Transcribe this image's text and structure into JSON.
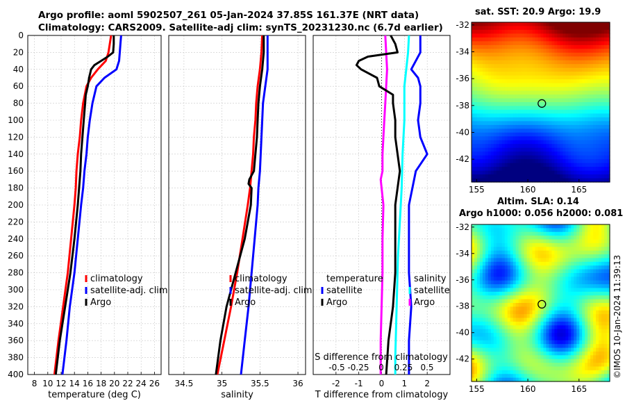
{
  "title_line1": "Argo profile: aoml 5902507_261 05-Jan-2024 37.85S 161.37E (NRT data)",
  "title_line2": "Climatology: CARS2009. Satellite-adj clim: synTS_20231230.nc (6.7d earlier)",
  "map1_title": "sat. SST: 20.9 Argo: 19.9",
  "map2_title_line1": "Altim. SLA: 0.14",
  "map2_title_line2": "Argo h1000: 0.056 h2000: 0.081",
  "credit": "©IMOS 10-Jan-2024 11:39:13",
  "colors": {
    "climatology": "#ff0000",
    "satellite": "#0000ff",
    "argo": "#000000",
    "sat_salinity": "#00ffff",
    "argo_salinity": "#ff00ff"
  },
  "chart_data": [
    {
      "type": "line",
      "name": "temperature",
      "xlabel": "temperature (deg C)",
      "ylabel": "",
      "xlim": [
        7,
        27
      ],
      "ylim": [
        400,
        0
      ],
      "xticks": [
        "8",
        "10",
        "12",
        "14",
        "16",
        "18",
        "20",
        "22",
        "24",
        "26"
      ],
      "yticks": [
        "0",
        "20",
        "40",
        "60",
        "80",
        "100",
        "120",
        "140",
        "160",
        "180",
        "200",
        "220",
        "240",
        "260",
        "280",
        "300",
        "320",
        "340",
        "360",
        "380",
        "400"
      ],
      "legend": [
        "climatology",
        "satellite-adj. clim",
        "Argo"
      ],
      "series": [
        {
          "name": "climatology",
          "depth": [
            0,
            10,
            20,
            30,
            40,
            50,
            60,
            80,
            100,
            120,
            140,
            160,
            180,
            200,
            240,
            280,
            320,
            360,
            400
          ],
          "values": [
            19.5,
            19.3,
            19.1,
            18.7,
            17.5,
            16.5,
            15.8,
            15.3,
            15.0,
            14.8,
            14.5,
            14.3,
            14.2,
            14.0,
            13.5,
            13.0,
            12.3,
            11.6,
            11.0
          ]
        },
        {
          "name": "satellite-adj. clim",
          "depth": [
            0,
            10,
            20,
            30,
            40,
            50,
            60,
            80,
            100,
            120,
            140,
            160,
            180,
            200,
            240,
            280,
            320,
            360,
            400
          ],
          "values": [
            21.0,
            20.9,
            20.8,
            20.7,
            20.3,
            18.5,
            17.3,
            16.7,
            16.3,
            16.0,
            15.8,
            15.5,
            15.3,
            15.0,
            14.5,
            14.0,
            13.3,
            12.8,
            12.2
          ]
        },
        {
          "name": "Argo",
          "depth": [
            0,
            10,
            20,
            25,
            30,
            35,
            40,
            50,
            60,
            70,
            80,
            100,
            120,
            140,
            160,
            180,
            200,
            240,
            280,
            320,
            360,
            400
          ],
          "values": [
            19.9,
            19.9,
            19.8,
            19.0,
            18.0,
            17.0,
            16.5,
            16.2,
            16.0,
            15.7,
            15.6,
            15.4,
            15.2,
            15.0,
            14.9,
            14.7,
            14.5,
            14.0,
            13.4,
            12.6,
            11.8,
            11.2
          ]
        }
      ]
    },
    {
      "type": "line",
      "name": "salinity",
      "xlabel": "salinity",
      "ylabel": "",
      "xlim": [
        34.3,
        36.1
      ],
      "ylim": [
        400,
        0
      ],
      "xticks": [
        "34.5",
        "35",
        "35.5",
        "36"
      ],
      "legend": [
        "climatology",
        "satellite-adj. clim",
        "Argo"
      ],
      "series": [
        {
          "name": "climatology",
          "depth": [
            0,
            20,
            40,
            60,
            80,
            100,
            120,
            140,
            160,
            180,
            200,
            240,
            280,
            320,
            360,
            400
          ],
          "values": [
            35.53,
            35.52,
            35.5,
            35.47,
            35.45,
            35.44,
            35.42,
            35.41,
            35.39,
            35.37,
            35.34,
            35.27,
            35.2,
            35.12,
            35.03,
            34.94
          ]
        },
        {
          "name": "satellite-adj. clim",
          "depth": [
            0,
            20,
            40,
            60,
            80,
            100,
            120,
            140,
            160,
            180,
            200,
            240,
            280,
            320,
            360,
            400
          ],
          "values": [
            35.6,
            35.6,
            35.6,
            35.57,
            35.54,
            35.53,
            35.52,
            35.51,
            35.5,
            35.48,
            35.47,
            35.43,
            35.39,
            35.35,
            35.3,
            35.25
          ]
        },
        {
          "name": "Argo",
          "depth": [
            0,
            20,
            40,
            60,
            80,
            100,
            120,
            140,
            160,
            170,
            175,
            180,
            200,
            240,
            280,
            320,
            360,
            400
          ],
          "values": [
            35.55,
            35.55,
            35.53,
            35.5,
            35.48,
            35.47,
            35.46,
            35.44,
            35.42,
            35.36,
            35.35,
            35.39,
            35.38,
            35.3,
            35.18,
            35.06,
            34.98,
            34.92
          ]
        }
      ]
    },
    {
      "type": "line",
      "name": "difference",
      "xlabel": "T difference from climatology",
      "xlabel_top": "S difference from climatology",
      "xlim": [
        -3,
        3
      ],
      "ylim": [
        400,
        0
      ],
      "xticks": [
        "-2",
        "-1",
        "0",
        "1",
        "2"
      ],
      "xticks_top": [
        "-0.5",
        "-0.25",
        "0",
        "0.25",
        "0.5"
      ],
      "legend_T_title": "temperature",
      "legend_S_title": "salinity",
      "legend_T": [
        "satellite",
        "Argo"
      ],
      "legend_S": [
        "satellite",
        "Argo"
      ],
      "series": [
        {
          "name": "T satellite",
          "depth": [
            0,
            20,
            40,
            50,
            60,
            80,
            100,
            120,
            140,
            160,
            200,
            240,
            280,
            320,
            360,
            400
          ],
          "values": [
            1.7,
            1.7,
            1.3,
            1.6,
            1.7,
            1.7,
            1.6,
            1.7,
            2.0,
            1.5,
            1.2,
            1.2,
            1.2,
            1.3,
            1.2,
            1.2
          ]
        },
        {
          "name": "T Argo",
          "depth": [
            0,
            10,
            20,
            25,
            30,
            35,
            40,
            50,
            60,
            70,
            80,
            100,
            120,
            140,
            160,
            180,
            200,
            240,
            280,
            320,
            360,
            400
          ],
          "values": [
            0.4,
            0.6,
            0.7,
            -0.6,
            -1.0,
            -1.1,
            -0.9,
            -0.2,
            -0.1,
            0.5,
            0.5,
            0.6,
            0.6,
            0.7,
            0.8,
            0.7,
            0.6,
            0.6,
            0.6,
            0.5,
            0.3,
            0.2
          ]
        },
        {
          "name": "S satellite",
          "depth": [
            0,
            20,
            40,
            60,
            100,
            140,
            180,
            220,
            260,
            300,
            340,
            380,
            400
          ],
          "values": [
            0.3,
            0.29,
            0.27,
            0.25,
            0.25,
            0.23,
            0.22,
            0.2,
            0.18,
            0.17,
            0.16,
            0.15,
            0.15
          ]
        },
        {
          "name": "S Argo",
          "depth": [
            0,
            20,
            40,
            60,
            80,
            100,
            120,
            140,
            160,
            170,
            180,
            200,
            240,
            280,
            320,
            360,
            400
          ],
          "values": [
            0.04,
            0.05,
            0.06,
            0.05,
            0.04,
            0.03,
            0.02,
            0.01,
            0.01,
            -0.01,
            0.0,
            0.02,
            0.01,
            0.01,
            0.0,
            -0.01,
            -0.01
          ]
        }
      ]
    },
    {
      "type": "heatmap",
      "name": "sst_map",
      "title": "sat. SST: 20.9 Argo: 19.9",
      "xlim": [
        154.5,
        168
      ],
      "ylim": [
        -43.7,
        -31.8
      ],
      "xticks": [
        "155",
        "160",
        "165"
      ],
      "yticks": [
        "-32",
        "-34",
        "-36",
        "-38",
        "-40",
        "-42"
      ],
      "argo_lon": 161.37,
      "argo_lat": -37.85
    },
    {
      "type": "heatmap",
      "name": "sla_map",
      "title": "Altim. SLA: 0.14",
      "xlim": [
        154.5,
        168
      ],
      "ylim": [
        -43.7,
        -31.8
      ],
      "xticks": [
        "155",
        "160",
        "165"
      ],
      "yticks": [
        "-32",
        "-34",
        "-36",
        "-38",
        "-40",
        "-42"
      ],
      "argo_lon": 161.37,
      "argo_lat": -37.85
    }
  ]
}
